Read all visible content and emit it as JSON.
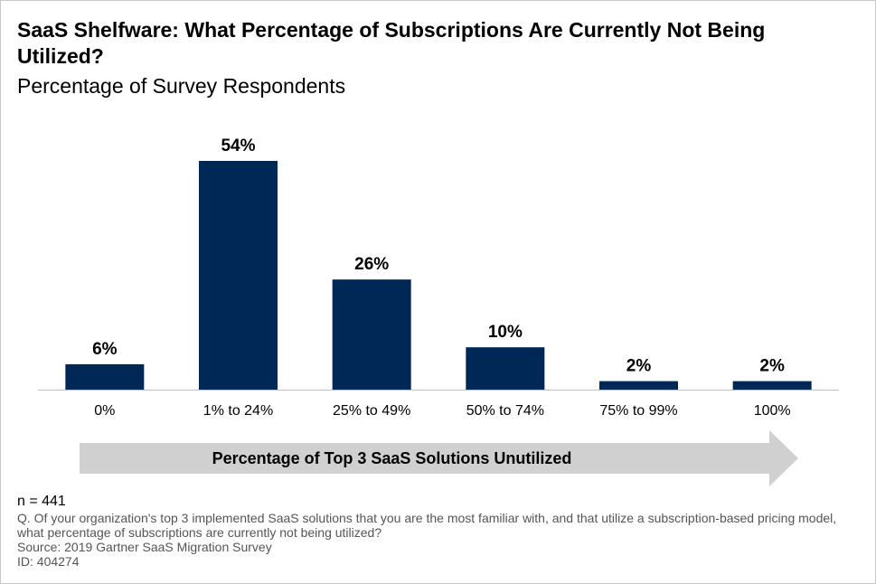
{
  "title": "SaaS Shelfware: What Percentage of Subscriptions Are Currently Not Being Utilized?",
  "subtitle": "Percentage of Survey Respondents",
  "x_axis_banner": "Percentage of Top 3 SaaS Solutions Unutilized",
  "colors": {
    "bar": "#002856",
    "arrow": "#d0d0d0",
    "axis": "#bfbfbf"
  },
  "chart_data": {
    "type": "bar",
    "categories": [
      "0%",
      "1% to 24%",
      "25% to 49%",
      "50% to 74%",
      "75% to 99%",
      "100%"
    ],
    "values": [
      6,
      54,
      26,
      10,
      2,
      2
    ],
    "data_labels": [
      "6%",
      "54%",
      "26%",
      "10%",
      "2%",
      "2%"
    ],
    "title": "SaaS Shelfware: What Percentage of Subscriptions Are Currently Not Being Utilized?",
    "subtitle": "Percentage of Survey Respondents",
    "xlabel": "Percentage of Top 3 SaaS Solutions Unutilized",
    "ylabel": "",
    "ylim": [
      0,
      54
    ],
    "grid": false,
    "legend": "none"
  },
  "footnotes": {
    "n": "n = 441",
    "question": "Q. Of your organization's top 3 implemented SaaS solutions that you are the most familiar with, and that utilize a subscription-based pricing model, what percentage of subscriptions are currently not being utilized?",
    "source": "Source: 2019 Gartner SaaS Migration Survey",
    "id": "ID: 404274"
  }
}
